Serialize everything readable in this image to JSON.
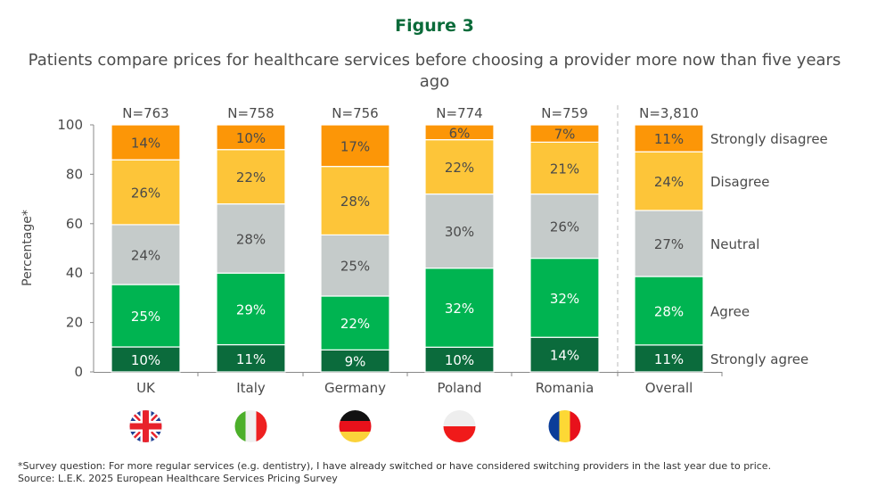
{
  "figure_label": "Figure 3",
  "chart_data": {
    "type": "bar",
    "stacked": true,
    "title": "Patients compare prices for healthcare services before choosing a provider more now than five years ago",
    "ylabel": "Percentage*",
    "xlabel": "",
    "ylim": [
      0,
      100
    ],
    "yticks": [
      0,
      20,
      40,
      60,
      80,
      100
    ],
    "grid": false,
    "legend_placement": "right",
    "categories": [
      "UK",
      "Italy",
      "Germany",
      "Poland",
      "Romania",
      "Overall"
    ],
    "sample_sizes": [
      "N=763",
      "N=758",
      "N=756",
      "N=774",
      "N=759",
      "N=3,810"
    ],
    "flags": [
      "uk-flag",
      "italy-flag",
      "germany-flag",
      "poland-flag",
      "romania-flag",
      null
    ],
    "series": [
      {
        "name": "Strongly agree",
        "color": "#0b6b3c",
        "label_color": "#ffffff",
        "values": [
          10,
          11,
          9,
          10,
          14,
          11
        ]
      },
      {
        "name": "Agree",
        "color": "#00b451",
        "label_color": "#ffffff",
        "values": [
          25,
          29,
          22,
          32,
          32,
          28
        ]
      },
      {
        "name": "Neutral",
        "color": "#c5cbca",
        "label_color": "#4a4a4a",
        "values": [
          24,
          28,
          25,
          30,
          26,
          27
        ]
      },
      {
        "name": "Disagree",
        "color": "#fdc539",
        "label_color": "#4a4a4a",
        "values": [
          26,
          22,
          28,
          22,
          21,
          24
        ]
      },
      {
        "name": "Strongly disagree",
        "color": "#fc9607",
        "label_color": "#4a4a4a",
        "values": [
          14,
          10,
          17,
          6,
          7,
          11
        ]
      }
    ],
    "separator_before": "Overall"
  },
  "footnote": {
    "line1": "*Survey question: For more regular services (e.g. dentistry), I have already switched or have considered switching providers in the last year due to price.",
    "line2": "Source: L.E.K. 2025 European Healthcare Services Pricing Survey"
  }
}
